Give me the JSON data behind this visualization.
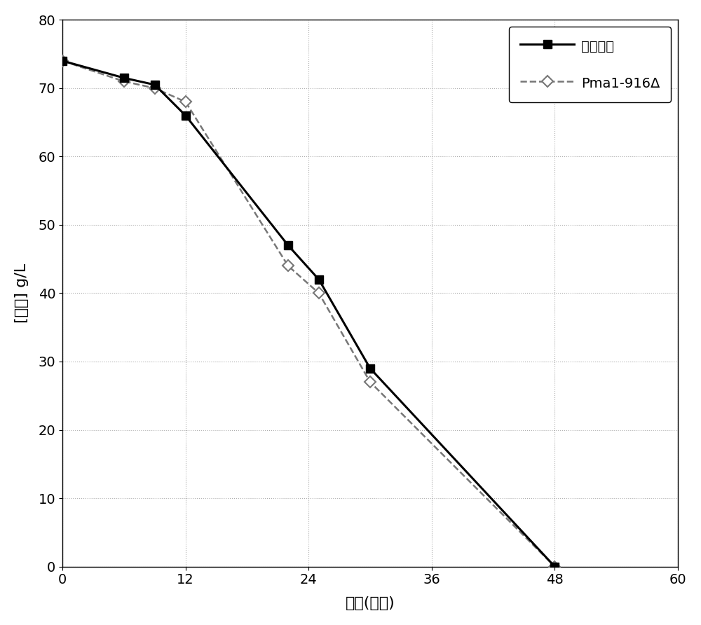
{
  "solid_x": [
    0,
    6,
    9,
    12,
    22,
    25,
    30,
    48
  ],
  "solid_y": [
    74,
    71.5,
    70.5,
    66,
    47,
    42,
    29,
    0
  ],
  "dashed_x": [
    0,
    6,
    9,
    12,
    22,
    25,
    30,
    48
  ],
  "dashed_y": [
    74,
    71,
    70,
    68,
    44,
    40,
    27,
    0
  ],
  "solid_label": "阴性对照",
  "dashed_label": "Pma1-916Δ",
  "xlabel": "时间(小时)",
  "ylabel": "[乳糖] g/L",
  "xlim": [
    0,
    60
  ],
  "ylim": [
    0,
    80
  ],
  "xticks": [
    0,
    12,
    24,
    36,
    48,
    60
  ],
  "yticks": [
    0,
    10,
    20,
    30,
    40,
    50,
    60,
    70,
    80
  ],
  "solid_color": "#000000",
  "dashed_color": "#777777",
  "background_color": "#ffffff"
}
